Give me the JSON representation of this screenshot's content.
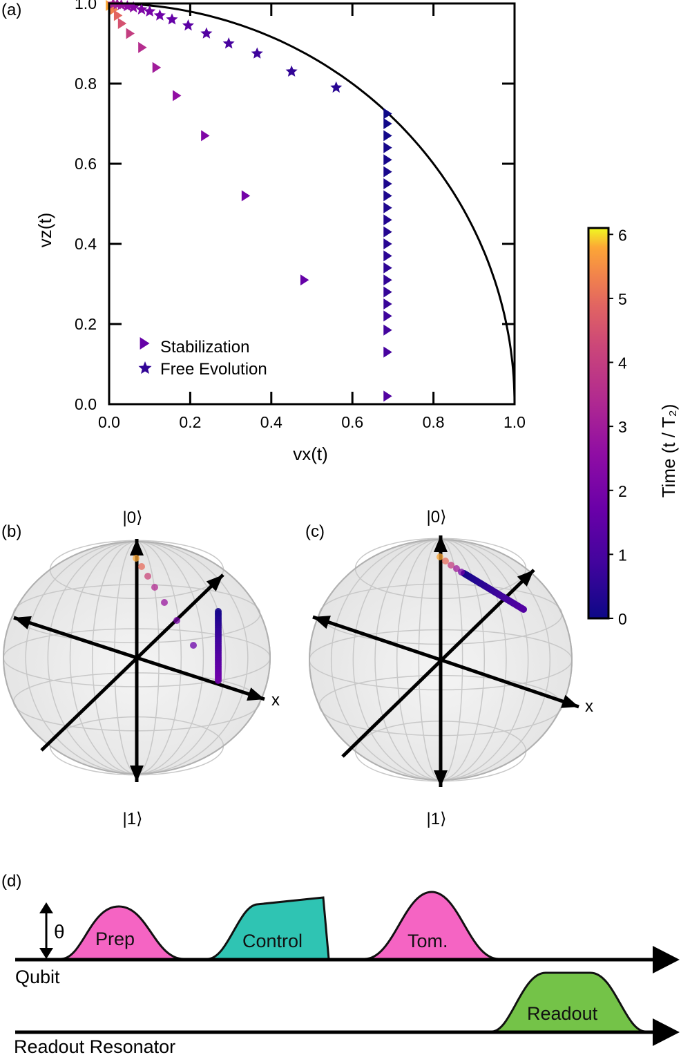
{
  "panels": {
    "a": "(a)",
    "b": "(b)",
    "c": "(c)",
    "d": "(d)"
  },
  "chart_data": [
    {
      "type": "scatter",
      "panel": "(a)",
      "xlabel": "vx(t)",
      "ylabel": "vz(t)",
      "xlim": [
        0.0,
        1.0
      ],
      "ylim": [
        0.0,
        1.0
      ],
      "xticks": [
        "0.0",
        "0.2",
        "0.4",
        "0.6",
        "0.8",
        "1.0"
      ],
      "yticks": [
        "0.0",
        "0.2",
        "0.4",
        "0.6",
        "0.8",
        "1.0"
      ],
      "grid": false,
      "legend_position": "bottom-left",
      "reference_curve": "unit circle vx^2 + vz^2 = 1",
      "colormap": "plasma",
      "series": [
        {
          "name": "Stabilization",
          "marker": "triangle-right",
          "points": [
            {
              "x": 0.0,
              "y": 0.995,
              "t": 5.8
            },
            {
              "x": 0.01,
              "y": 0.985,
              "t": 5.3
            },
            {
              "x": 0.02,
              "y": 0.97,
              "t": 4.9
            },
            {
              "x": 0.03,
              "y": 0.95,
              "t": 4.5
            },
            {
              "x": 0.05,
              "y": 0.925,
              "t": 4.0
            },
            {
              "x": 0.08,
              "y": 0.89,
              "t": 3.5
            },
            {
              "x": 0.115,
              "y": 0.84,
              "t": 3.0
            },
            {
              "x": 0.165,
              "y": 0.77,
              "t": 2.6
            },
            {
              "x": 0.235,
              "y": 0.67,
              "t": 2.2
            },
            {
              "x": 0.335,
              "y": 0.52,
              "t": 1.9
            },
            {
              "x": 0.48,
              "y": 0.31,
              "t": 1.6
            },
            {
              "x": 0.685,
              "y": 0.02,
              "t": 1.2
            },
            {
              "x": 0.685,
              "y": 0.13,
              "t": 1.0
            },
            {
              "x": 0.685,
              "y": 0.185,
              "t": 0.9
            },
            {
              "x": 0.685,
              "y": 0.22,
              "t": 0.8
            },
            {
              "x": 0.685,
              "y": 0.25,
              "t": 0.7
            },
            {
              "x": 0.685,
              "y": 0.28,
              "t": 0.65
            },
            {
              "x": 0.685,
              "y": 0.31,
              "t": 0.6
            },
            {
              "x": 0.685,
              "y": 0.34,
              "t": 0.55
            },
            {
              "x": 0.685,
              "y": 0.37,
              "t": 0.5
            },
            {
              "x": 0.685,
              "y": 0.4,
              "t": 0.45
            },
            {
              "x": 0.685,
              "y": 0.43,
              "t": 0.4
            },
            {
              "x": 0.685,
              "y": 0.46,
              "t": 0.35
            },
            {
              "x": 0.685,
              "y": 0.49,
              "t": 0.3
            },
            {
              "x": 0.685,
              "y": 0.52,
              "t": 0.27
            },
            {
              "x": 0.685,
              "y": 0.55,
              "t": 0.24
            },
            {
              "x": 0.685,
              "y": 0.58,
              "t": 0.2
            },
            {
              "x": 0.685,
              "y": 0.61,
              "t": 0.17
            },
            {
              "x": 0.685,
              "y": 0.64,
              "t": 0.14
            },
            {
              "x": 0.685,
              "y": 0.67,
              "t": 0.1
            },
            {
              "x": 0.685,
              "y": 0.7,
              "t": 0.06
            },
            {
              "x": 0.685,
              "y": 0.725,
              "t": 0.02
            }
          ]
        },
        {
          "name": "Free Evolution",
          "marker": "star",
          "points": [
            {
              "x": 0.56,
              "y": 0.79,
              "t": 0.45
            },
            {
              "x": 0.45,
              "y": 0.83,
              "t": 0.6
            },
            {
              "x": 0.365,
              "y": 0.875,
              "t": 0.8
            },
            {
              "x": 0.295,
              "y": 0.9,
              "t": 1.0
            },
            {
              "x": 0.24,
              "y": 0.925,
              "t": 1.2
            },
            {
              "x": 0.195,
              "y": 0.945,
              "t": 1.4
            },
            {
              "x": 0.155,
              "y": 0.96,
              "t": 1.6
            },
            {
              "x": 0.125,
              "y": 0.97,
              "t": 1.8
            },
            {
              "x": 0.1,
              "y": 0.98,
              "t": 2.0
            },
            {
              "x": 0.08,
              "y": 0.985,
              "t": 2.2
            },
            {
              "x": 0.06,
              "y": 0.99,
              "t": 2.4
            },
            {
              "x": 0.045,
              "y": 0.993,
              "t": 2.6
            },
            {
              "x": 0.03,
              "y": 0.996,
              "t": 2.8
            },
            {
              "x": 0.02,
              "y": 0.998,
              "t": 3.0
            },
            {
              "x": 0.01,
              "y": 0.999,
              "t": 3.2
            }
          ]
        }
      ]
    },
    {
      "type": "colorbar",
      "label": "Time (t / T₂)",
      "range": [
        0,
        6.1
      ],
      "ticks": [
        "0",
        "1",
        "2",
        "3",
        "4",
        "5",
        "6"
      ],
      "tick_values": [
        0,
        1,
        2,
        3,
        4,
        5,
        6
      ],
      "colormap": "plasma"
    }
  ],
  "bloch": {
    "b": {
      "top_label": "|0⟩",
      "bottom_label": "|1⟩",
      "x_label": "x"
    },
    "c": {
      "top_label": "|0⟩",
      "bottom_label": "|1⟩",
      "x_label": "x"
    }
  },
  "sequence": {
    "theta_label": "θ",
    "qubit_label": "Qubit",
    "resonator_label": "Readout Resonator",
    "pulses": {
      "prep": "Prep",
      "control": "Control",
      "tom": "Tom.",
      "readout": "Readout"
    },
    "colors": {
      "prep": "#f564c3",
      "control": "#2fc4b3",
      "tom": "#f564c3",
      "readout": "#74c348"
    }
  }
}
